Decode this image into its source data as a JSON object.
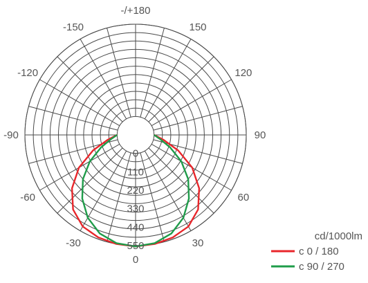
{
  "chart_data": {
    "type": "polar",
    "unit_label": "cd/1000lm",
    "angle_labels": [
      {
        "angle": 180,
        "label": "-/+180"
      },
      {
        "angle": 150,
        "label": "150"
      },
      {
        "angle": 120,
        "label": "120"
      },
      {
        "angle": 90,
        "label": "90"
      },
      {
        "angle": 60,
        "label": "60"
      },
      {
        "angle": 30,
        "label": "30"
      },
      {
        "angle": 0,
        "label": "0"
      },
      {
        "angle": -30,
        "label": "-30"
      },
      {
        "angle": -60,
        "label": "-60"
      },
      {
        "angle": -90,
        "label": "-90"
      },
      {
        "angle": -120,
        "label": "-120"
      },
      {
        "angle": -150,
        "label": "-150"
      }
    ],
    "radial_ticks": [
      0,
      110,
      220,
      330,
      440,
      550
    ],
    "radial_max": 550,
    "series": [
      {
        "name": "c 0 / 180",
        "color": "#e8262b",
        "angles": [
          0,
          10,
          20,
          30,
          40,
          50,
          60,
          70,
          80,
          90
        ],
        "values": [
          555,
          550,
          540,
          520,
          470,
          385,
          280,
          160,
          60,
          0
        ]
      },
      {
        "name": "c 90 / 270",
        "color": "#1f9c4a",
        "angles": [
          0,
          10,
          20,
          30,
          40,
          50,
          60,
          70,
          80,
          90
        ],
        "values": [
          555,
          545,
          515,
          460,
          385,
          300,
          205,
          110,
          40,
          0
        ]
      }
    ]
  }
}
